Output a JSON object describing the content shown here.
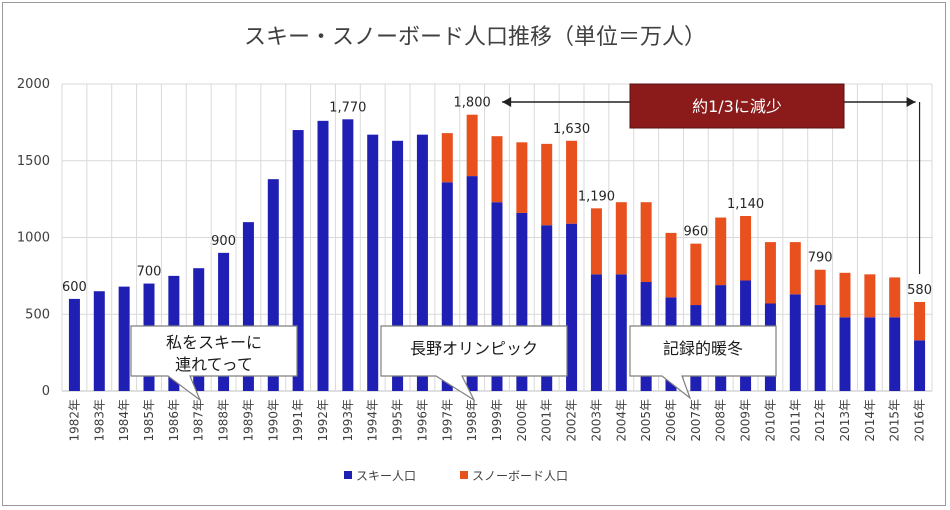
{
  "chart_data": {
    "type": "bar",
    "stacked": true,
    "title": "スキー・スノーボード人口推移（単位＝万人）",
    "ylim": [
      0,
      2000
    ],
    "yticks": [
      0,
      500,
      1000,
      1500,
      2000
    ],
    "grid": true,
    "categories": [
      "1982年",
      "1983年",
      "1984年",
      "1985年",
      "1986年",
      "1987年",
      "1988年",
      "1989年",
      "1990年",
      "1991年",
      "1992年",
      "1993年",
      "1994年",
      "1995年",
      "1996年",
      "1997年",
      "1998年",
      "1999年",
      "2000年",
      "2001年",
      "2002年",
      "2003年",
      "2004年",
      "2005年",
      "2006年",
      "2007年",
      "2008年",
      "2009年",
      "2010年",
      "2011年",
      "2012年",
      "2013年",
      "2014年",
      "2015年",
      "2016年"
    ],
    "series": [
      {
        "name": "スキー人口",
        "color": "#1f1fb4",
        "values": [
          600,
          650,
          680,
          700,
          750,
          800,
          900,
          1100,
          1380,
          1700,
          1760,
          1770,
          1670,
          1630,
          1670,
          1360,
          1400,
          1230,
          1160,
          1080,
          1090,
          760,
          760,
          710,
          610,
          560,
          690,
          720,
          570,
          630,
          560,
          480,
          480,
          480,
          330
        ]
      },
      {
        "name": "スノーボード人口",
        "color": "#e8501e",
        "values": [
          0,
          0,
          0,
          0,
          0,
          0,
          0,
          0,
          0,
          0,
          0,
          0,
          0,
          0,
          0,
          320,
          400,
          430,
          460,
          530,
          540,
          430,
          470,
          520,
          420,
          400,
          440,
          420,
          400,
          340,
          230,
          290,
          280,
          260,
          250
        ]
      }
    ],
    "data_labels": [
      {
        "index": 0,
        "text": "600"
      },
      {
        "index": 3,
        "text": "700"
      },
      {
        "index": 6,
        "text": "900"
      },
      {
        "index": 11,
        "text": "1,770"
      },
      {
        "index": 16,
        "text": "1,800"
      },
      {
        "index": 20,
        "text": "1,630"
      },
      {
        "index": 21,
        "text": "1,190"
      },
      {
        "index": 25,
        "text": "960"
      },
      {
        "index": 27,
        "text": "1,140"
      },
      {
        "index": 30,
        "text": "790"
      },
      {
        "index": 34,
        "text": "580"
      }
    ],
    "annotations": {
      "banner": "約1/3に減少",
      "banner_color": "#8b1a1a",
      "callouts": [
        "私をスキーに連れてって",
        "長野オリンピック",
        "記録的暖冬"
      ]
    },
    "legend": {
      "position": "bottom"
    }
  }
}
